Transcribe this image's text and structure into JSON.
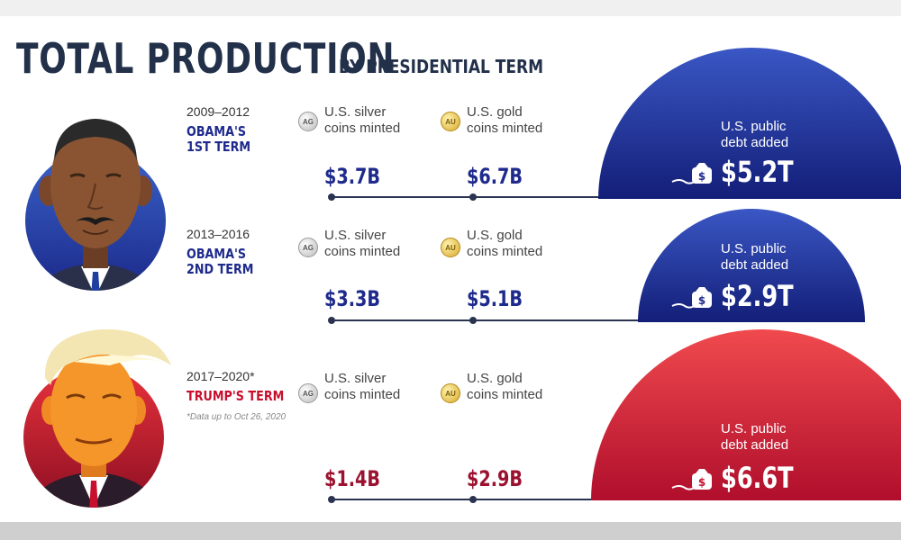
{
  "title": {
    "main": "TOTAL PRODUCTION",
    "sub": "BY PRESIDENTIAL TERM"
  },
  "legend": {
    "silver_label": "U.S. silver\ncoins minted",
    "gold_label": "U.S. gold\ncoins minted",
    "debt_label": "U.S. public\ndebt added",
    "silver_coin": "AG",
    "gold_coin": "AU"
  },
  "rows": [
    {
      "years": "2009–2012",
      "term": "OBAMA'S\n1ST TERM",
      "silver": "$3.7B",
      "gold": "$6.7B",
      "debt": "$5.2T",
      "note": ""
    },
    {
      "years": "2013–2016",
      "term": "OBAMA'S\n2ND TERM",
      "silver": "$3.3B",
      "gold": "$5.1B",
      "debt": "$2.9T",
      "note": ""
    },
    {
      "years": "2017–2020*",
      "term": "TRUMP'S TERM",
      "silver": "$1.4B",
      "gold": "$2.9B",
      "debt": "$6.6T",
      "note": "*Data up to Oct 26, 2020"
    }
  ],
  "colors": {
    "obama": "#1e2a8c",
    "trump": "#c8102e",
    "text": "#22304a"
  },
  "chart_data": {
    "type": "bar",
    "categories": [
      "Obama's 1st Term",
      "Obama's 2nd Term",
      "Trump's Term"
    ],
    "series": [
      {
        "name": "U.S. silver coins minted",
        "values": [
          3.7,
          3.3,
          1.4
        ],
        "unit": "billion USD"
      },
      {
        "name": "U.S. gold coins minted",
        "values": [
          6.7,
          5.1,
          2.9
        ],
        "unit": "billion USD"
      },
      {
        "name": "U.S. public debt added",
        "values": [
          5.2,
          2.9,
          6.6
        ],
        "unit": "trillion USD"
      }
    ],
    "title": "TOTAL PRODUCTION BY PRESIDENTIAL TERM"
  }
}
